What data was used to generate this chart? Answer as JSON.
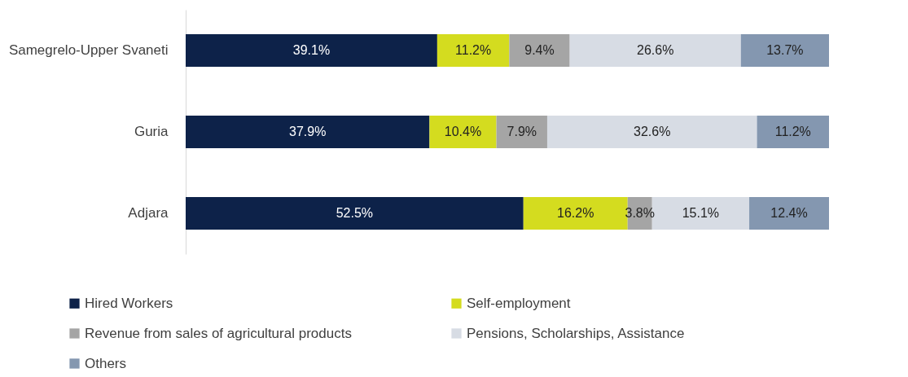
{
  "chart_data": {
    "type": "bar",
    "orientation": "horizontal",
    "stacked": true,
    "legend": "bottom",
    "tick_labels": "y",
    "categories": [
      "Samegrelo-Upper Svaneti",
      "Guria",
      "Adjara"
    ],
    "series": [
      {
        "name": "Hired Workers",
        "color": "#0d2249",
        "values": [
          39.1,
          37.9,
          52.5
        ],
        "value_labels": [
          "39.1%",
          "37.9%",
          "52.5%"
        ]
      },
      {
        "name": "Self-employment",
        "color": "#d4dc1f",
        "values": [
          11.2,
          10.4,
          16.2
        ],
        "value_labels": [
          "11.2%",
          "10.4%",
          "16.2%"
        ]
      },
      {
        "name": "Revenue from sales of agricultural products",
        "color": "#a5a5a5",
        "values": [
          9.4,
          7.9,
          3.8
        ],
        "value_labels": [
          "9.4%",
          "7.9%",
          "3.8%"
        ]
      },
      {
        "name": "Pensions, Scholarships, Assistance",
        "color": "#d7dce4",
        "values": [
          26.6,
          32.6,
          15.1
        ],
        "value_labels": [
          "26.6%",
          "32.6%",
          "15.1%"
        ]
      },
      {
        "name": "Others",
        "color": "#8497b0",
        "values": [
          13.7,
          11.2,
          12.4
        ],
        "value_labels": [
          "13.7%",
          "11.2%",
          "12.4%"
        ]
      }
    ]
  }
}
